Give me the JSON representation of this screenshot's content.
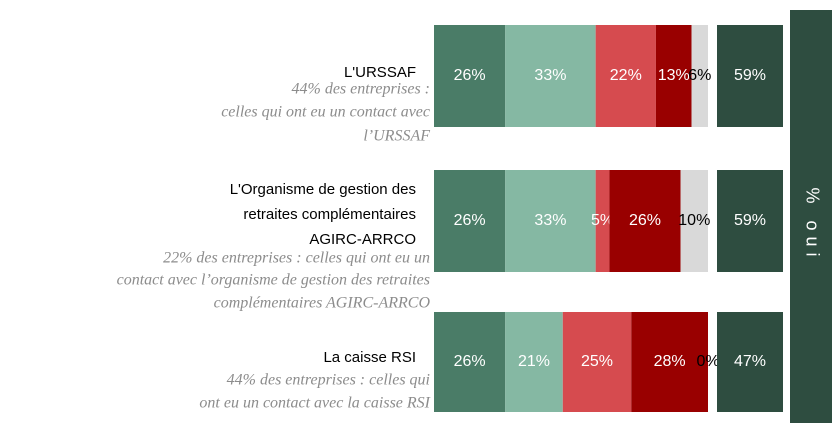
{
  "chart_data": {
    "type": "stacked-bar",
    "categories": [
      [
        "L'URSSAF"
      ],
      [
        "L'Organisme de gestion des",
        "retraites complémentaires",
        "AGIRC-ARRCO"
      ],
      [
        "La caisse RSI"
      ]
    ],
    "notes": [
      [
        "44% des entreprises :",
        "celles qui ont eu un contact avec",
        "l’URSSAF"
      ],
      [
        "22% des entreprises : celles qui ont eu un",
        "contact avec l’organisme de gestion des retraites",
        "complémentaires AGIRC-ARRCO"
      ],
      [
        "44% des entreprises : celles qui",
        "ont eu un contact avec la caisse RSI"
      ]
    ],
    "xlim": [
      0,
      100
    ],
    "series": [
      {
        "color": "#4a7c67",
        "values": [
          26,
          26,
          26
        ],
        "value_labels": [
          "26%",
          "26%",
          "26%"
        ]
      },
      {
        "color": "#85b8a3",
        "values": [
          33,
          33,
          21
        ],
        "value_labels": [
          "33%",
          "33%",
          "21%"
        ]
      },
      {
        "color": "#d64b4f",
        "values": [
          22,
          5,
          25
        ],
        "value_labels": [
          "22%",
          "5%",
          "25%"
        ]
      },
      {
        "color": "#990000",
        "values": [
          13,
          26,
          28
        ],
        "value_labels": [
          "13%",
          "26%",
          "28%"
        ]
      },
      {
        "color": "#d9d9d9",
        "values": [
          6,
          10,
          0
        ],
        "value_labels": [
          "6%",
          "10%",
          "0%"
        ]
      }
    ],
    "totals": {
      "color": "#2e4d40",
      "values": [
        59,
        59,
        47
      ],
      "value_labels": [
        "59%",
        "59%",
        "47%"
      ]
    },
    "side_label": "% oui"
  }
}
